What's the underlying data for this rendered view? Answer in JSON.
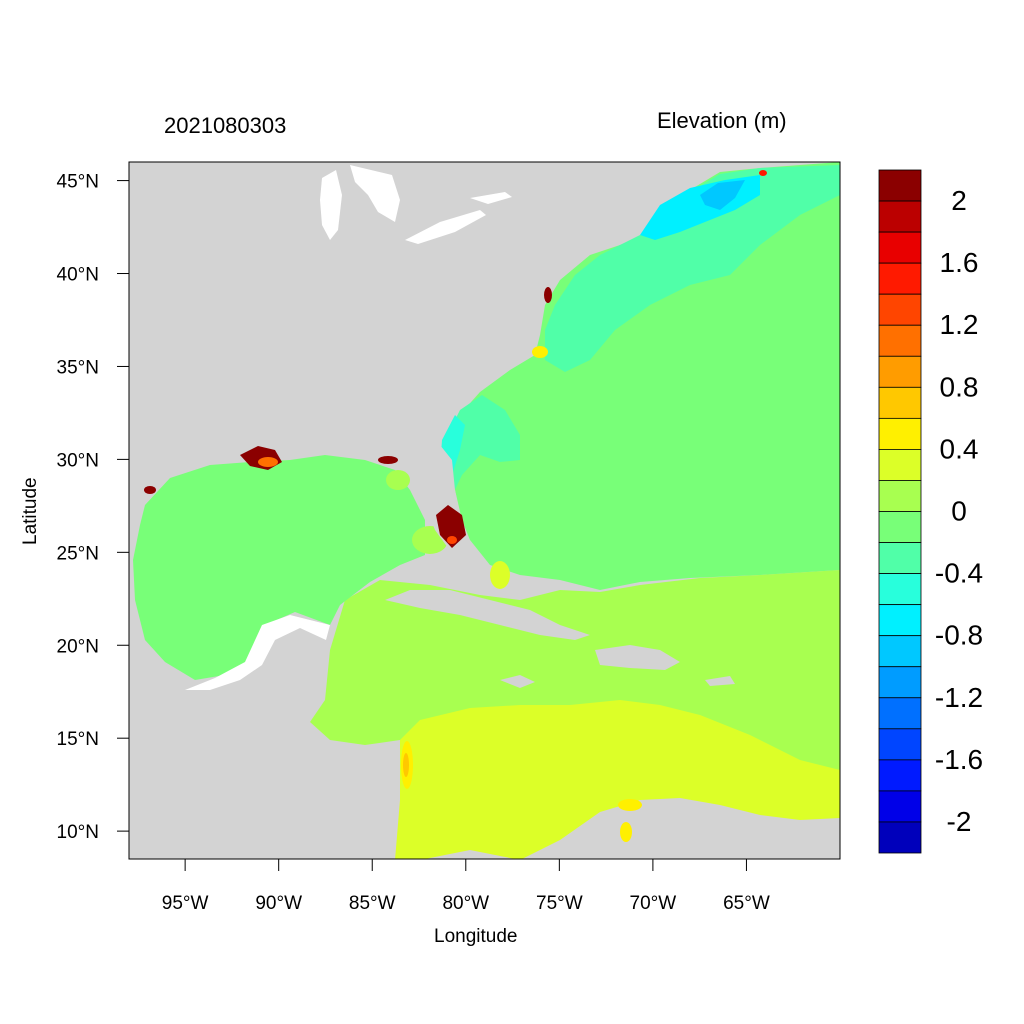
{
  "map": {
    "run_time": "2021080303",
    "variable": "Elevation (m)",
    "x_axis_title": "Longitude",
    "y_axis_title": "Latitude",
    "lon_range": [
      -98,
      -60
    ],
    "lat_range": [
      8.5,
      46
    ],
    "x_ticks": [
      {
        "value": -95,
        "label": "95°W"
      },
      {
        "value": -90,
        "label": "90°W"
      },
      {
        "value": -85,
        "label": "85°W"
      },
      {
        "value": -80,
        "label": "80°W"
      },
      {
        "value": -75,
        "label": "75°W"
      },
      {
        "value": -70,
        "label": "70°W"
      },
      {
        "value": -65,
        "label": "65°W"
      }
    ],
    "y_ticks": [
      {
        "value": 45,
        "label": "45°N"
      },
      {
        "value": 40,
        "label": "40°N"
      },
      {
        "value": 35,
        "label": "35°N"
      },
      {
        "value": 30,
        "label": "30°N"
      },
      {
        "value": 25,
        "label": "25°N"
      },
      {
        "value": 20,
        "label": "20°N"
      },
      {
        "value": 15,
        "label": "15°N"
      },
      {
        "value": 10,
        "label": "10°N"
      }
    ],
    "colors": {
      "land": "#d3d3d3",
      "lakes": "#ffffff",
      "surge_high": "#8b0000"
    }
  },
  "colorbar": {
    "levels_top_to_bottom": [
      "2.2",
      "2",
      "1.8",
      "1.6",
      "1.4",
      "1.2",
      "1",
      "0.8",
      "0.6",
      "0.4",
      "0.2",
      "0",
      "-0.2",
      "-0.4",
      "-0.6",
      "-0.8",
      "-1",
      "-1.2",
      "-1.4",
      "-1.6",
      "-1.8",
      "-2",
      "-2.2"
    ],
    "colors_top_to_bottom": [
      "#8b0000",
      "#bb0000",
      "#e80000",
      "#ff1a00",
      "#ff4500",
      "#ff7000",
      "#ff9c00",
      "#ffc800",
      "#fff000",
      "#dcff28",
      "#a8ff50",
      "#78ff78",
      "#50ffa8",
      "#28ffdc",
      "#00f0ff",
      "#00c8ff",
      "#009cff",
      "#0070ff",
      "#0045ff",
      "#001aff",
      "#0000e8",
      "#0000bb"
    ],
    "labels": [
      {
        "slot": 1,
        "text": "2"
      },
      {
        "slot": 3,
        "text": "1.6"
      },
      {
        "slot": 5,
        "text": "1.2"
      },
      {
        "slot": 7,
        "text": "0.8"
      },
      {
        "slot": 9,
        "text": "0.4"
      },
      {
        "slot": 11,
        "text": "0"
      },
      {
        "slot": 13,
        "text": "-0.4"
      },
      {
        "slot": 15,
        "text": "-0.8"
      },
      {
        "slot": 17,
        "text": "-1.2"
      },
      {
        "slot": 19,
        "text": "-1.6"
      },
      {
        "slot": 21,
        "text": "-2"
      }
    ]
  }
}
